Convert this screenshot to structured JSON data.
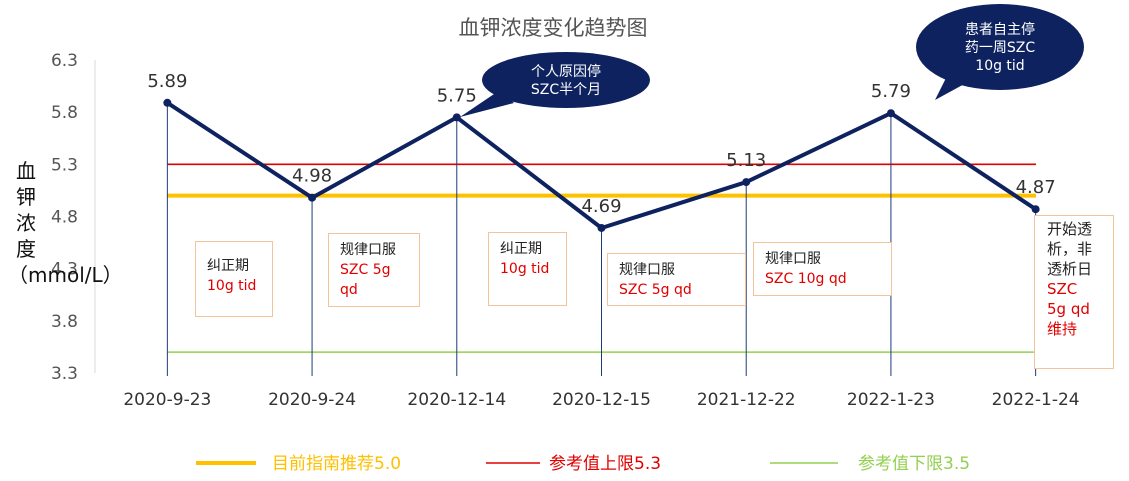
{
  "chart_data": {
    "type": "line",
    "title": "血钾浓度变化趋势图",
    "ylabel": "血钾浓度（mmol/L）",
    "ylim": [
      3.3,
      6.3
    ],
    "yticks": [
      "6.3",
      "5.8",
      "5.3",
      "4.8",
      "4.3",
      "3.8",
      "3.3"
    ],
    "categories": [
      "2020-9-23",
      "2020-9-24",
      "2020-12-14",
      "2020-12-15",
      "2021-12-22",
      "2022-1-23",
      "2022-1-24"
    ],
    "series": [
      {
        "name": "",
        "values": [
          5.89,
          4.98,
          5.75,
          4.69,
          5.13,
          5.79,
          4.87
        ],
        "color": "#0e2260"
      }
    ],
    "reference_lines": [
      {
        "name": "目前指南推荐5.0",
        "value": 5.0,
        "color": "#ffc000"
      },
      {
        "name": "参考值上限5.3",
        "value": 5.3,
        "color": "#e00000"
      },
      {
        "name": "参考值下限3.5",
        "value": 3.5,
        "color": "#92d050"
      }
    ],
    "callouts": [
      {
        "text": [
          "个人原因停",
          "SZC半个月"
        ],
        "point_index": 2,
        "color": "#0e2260"
      },
      {
        "text": [
          "患者自主停",
          "药一周SZC",
          "10g tid"
        ],
        "point_index": 5,
        "color": "#0e2260"
      }
    ],
    "annotations": [
      {
        "lines": [
          {
            "t": "纠正期",
            "red": false
          },
          {
            "t": "10g tid",
            "red": true
          }
        ]
      },
      {
        "lines": [
          {
            "t": "规律口服",
            "red": false
          },
          {
            "t": "SZC  5g",
            "red": true
          },
          {
            "t": "qd",
            "red": true
          }
        ]
      },
      {
        "lines": [
          {
            "t": "纠正期",
            "red": false
          },
          {
            "t": "10g tid",
            "red": true
          }
        ]
      },
      {
        "lines": [
          {
            "t": "规律口服",
            "red": false
          },
          {
            "t": "SZC  5g qd",
            "red": true
          }
        ]
      },
      {
        "lines": [
          {
            "t": "规律口服",
            "red": false
          },
          {
            "t": "SZC  10g qd",
            "red": true
          }
        ]
      },
      {
        "lines": [
          {
            "t": "开始透",
            "red": false
          },
          {
            "t": "析，非",
            "red": false
          },
          {
            "t": "透析日",
            "red": false
          },
          {
            "t": "SZC",
            "red": true
          },
          {
            "t": "5g qd",
            "red": true
          },
          {
            "t": "维持",
            "red": true
          }
        ]
      }
    ],
    "grid": false,
    "legend_position": "bottom"
  }
}
